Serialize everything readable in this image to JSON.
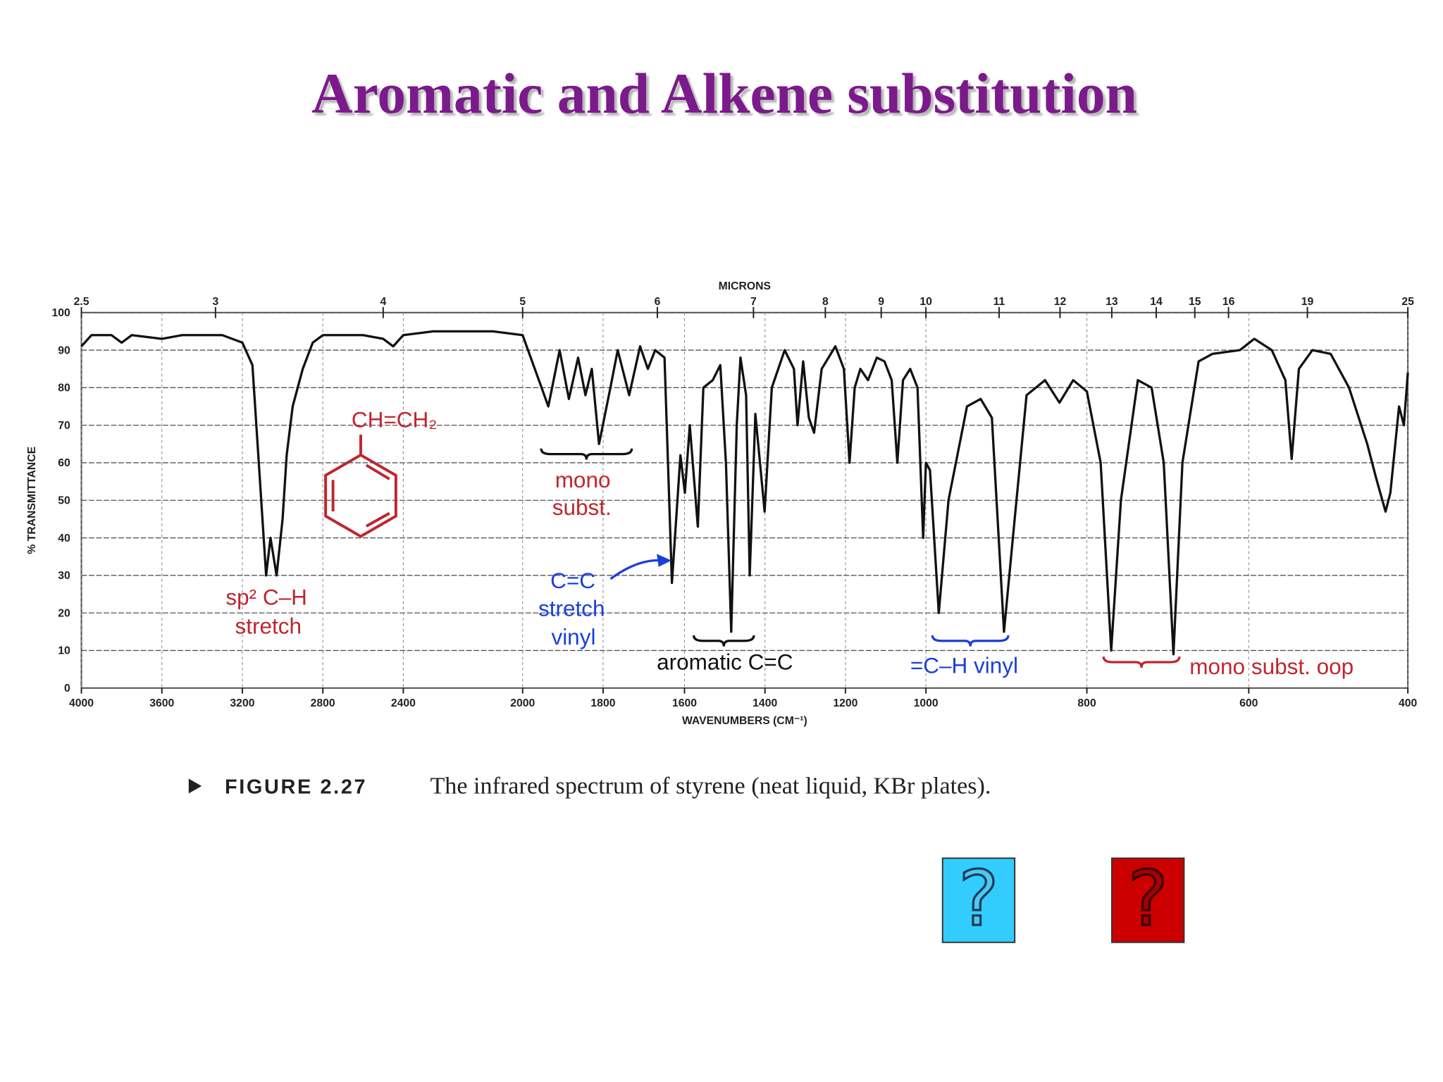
{
  "slide": {
    "title": "Aromatic and Alkene substitution",
    "figure_label": "FIGURE 2.27",
    "caption": "The infrared spectrum of styrene (neat liquid, KBr plates).",
    "buttons": [
      {
        "label": "?",
        "color": "#33ccff"
      },
      {
        "label": "?",
        "color": "#cc0000"
      }
    ]
  },
  "chart_data": {
    "type": "line",
    "xlabel": "WAVENUMBERS (CM⁻¹)",
    "ylabel": "% TRANSMITTANCE",
    "x2label": "MICRONS",
    "color": "#111111",
    "grid": true,
    "xlim": [
      4000,
      400
    ],
    "ylim": [
      0,
      100
    ],
    "xticks": [
      4000,
      3600,
      3200,
      2800,
      2400,
      2000,
      1800,
      1600,
      1400,
      1200,
      1000,
      800,
      600,
      400
    ],
    "yticks": [
      0,
      10,
      20,
      30,
      40,
      50,
      60,
      70,
      80,
      90,
      100
    ],
    "x2ticks": [
      2.5,
      3,
      4,
      5,
      6,
      7,
      8,
      9,
      10,
      11,
      12,
      13,
      14,
      15,
      16,
      19,
      25
    ],
    "x": [
      4000,
      3950,
      3850,
      3800,
      3750,
      3600,
      3500,
      3300,
      3200,
      3150,
      3082,
      3060,
      3030,
      3000,
      2980,
      2950,
      2900,
      2850,
      2800,
      2600,
      2500,
      2450,
      2400,
      2300,
      2100,
      2000,
      1936,
      1908,
      1885,
      1862,
      1844,
      1828,
      1810,
      1782,
      1764,
      1736,
      1709,
      1690,
      1672,
      1649,
      1631,
      1610,
      1599,
      1587,
      1567,
      1553,
      1530,
      1511,
      1497,
      1484,
      1470,
      1461,
      1447,
      1438,
      1424,
      1401,
      1383,
      1351,
      1328,
      1319,
      1305,
      1291,
      1278,
      1259,
      1225,
      1204,
      1190,
      1177,
      1163,
      1144,
      1122,
      1103,
      1085,
      1071,
      1057,
      1039,
      1021,
      1007,
      1000,
      995,
      984,
      972,
      949,
      932,
      918,
      903,
      892,
      875,
      852,
      834,
      817,
      800,
      783,
      770,
      758,
      737,
      720,
      705,
      693,
      682,
      662,
      645,
      611,
      593,
      571,
      554,
      546,
      537,
      520,
      497,
      474,
      451,
      440,
      428,
      422,
      411,
      405,
      400
    ],
    "values": [
      91,
      94,
      94,
      92,
      94,
      93,
      94,
      94,
      92,
      86,
      30,
      40,
      30,
      45,
      62,
      75,
      85,
      92,
      94,
      94,
      93,
      91,
      94,
      95,
      95,
      94,
      75,
      90,
      77,
      88,
      78,
      85,
      65,
      80,
      90,
      78,
      91,
      85,
      90,
      88,
      28,
      62,
      52,
      70,
      43,
      80,
      82,
      86,
      60,
      15,
      70,
      88,
      78,
      30,
      73,
      47,
      80,
      90,
      85,
      70,
      87,
      72,
      68,
      85,
      91,
      85,
      60,
      80,
      85,
      82,
      88,
      87,
      82,
      60,
      82,
      85,
      80,
      40,
      60,
      58,
      20,
      50,
      75,
      77,
      72,
      15,
      40,
      78,
      82,
      76,
      82,
      79,
      60,
      10,
      50,
      82,
      80,
      60,
      9,
      60,
      87,
      89,
      90,
      93,
      90,
      82,
      61,
      85,
      90,
      89,
      80,
      65,
      56,
      47,
      52,
      75,
      70,
      84
    ],
    "annotations": [
      {
        "text": "CH=CH₂",
        "color": "#c0262d"
      },
      {
        "text": "mono",
        "color": "#c0262d"
      },
      {
        "text": "subst.",
        "color": "#c0262d"
      },
      {
        "text": "sp² C–H",
        "color": "#c0262d"
      },
      {
        "text": "stretch",
        "color": "#c0262d"
      },
      {
        "text": "C=C",
        "color": "#1a3fd8"
      },
      {
        "text": "stretch",
        "color": "#1a3fd8"
      },
      {
        "text": "vinyl",
        "color": "#1a3fd8"
      },
      {
        "text": "aromatic C=C",
        "color": "#111111"
      },
      {
        "text": "=C–H vinyl",
        "color": "#1a3fd8"
      },
      {
        "text": "mono subst. oop",
        "color": "#c0262d"
      }
    ]
  }
}
